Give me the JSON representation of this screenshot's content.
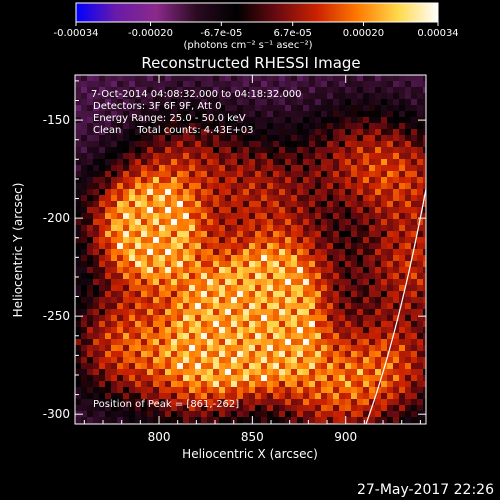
{
  "chart_data": {
    "type": "heatmap",
    "title": "Reconstructed RHESSI Image",
    "xlabel": "Heliocentric X (arcsec)",
    "ylabel": "Heliocentric Y (arcsec)",
    "xlim": [
      755,
      943
    ],
    "ylim": [
      -305,
      -127
    ],
    "x_ticks": [
      800,
      850,
      900
    ],
    "x_tick_labels": [
      "800",
      "850",
      "900"
    ],
    "y_ticks": [
      -150,
      -200,
      -250,
      -300
    ],
    "y_tick_labels": [
      "-150",
      "-200",
      "-250",
      "-300"
    ],
    "colorbar": {
      "range": [
        -0.00034,
        0.00034
      ],
      "ticks": [
        -0.00034,
        -0.0002,
        -6.7e-05,
        6.7e-05,
        0.0002,
        0.00034
      ],
      "tick_labels": [
        "-0.00034",
        "-0.00020",
        "-6.7e-05",
        "6.7e-05",
        "0.00020",
        "0.00034"
      ],
      "unit_label": "(photons cm⁻² s⁻¹ asec⁻²)",
      "colormap": [
        "#0000ff",
        "#6a1aa8",
        "#8a2a8a",
        "#2a0a20",
        "#000000",
        "#6a0a10",
        "#cc2200",
        "#ff7a00",
        "#ffd84a",
        "#ffffff"
      ]
    },
    "annotations": [
      "7-Oct-2014 04:08:32.000 to 04:18:32.000",
      "Detectors: 3F 6F 9F, Att 0",
      "Energy Range: 25.0 - 50.0 keV",
      "Clean     Total counts: 4.43E+03",
      "Position of Peak = [861,-262]"
    ],
    "bright_regions": [
      {
        "x": 790,
        "y": -200,
        "level": 0.95
      },
      {
        "x": 800,
        "y": -215,
        "level": 0.85
      },
      {
        "x": 780,
        "y": -265,
        "level": 0.8
      },
      {
        "x": 820,
        "y": -280,
        "level": 0.75
      },
      {
        "x": 861,
        "y": -262,
        "level": 1.0
      },
      {
        "x": 850,
        "y": -245,
        "level": 0.85
      },
      {
        "x": 870,
        "y": -225,
        "level": 0.7
      },
      {
        "x": 835,
        "y": -255,
        "level": 0.8
      },
      {
        "x": 893,
        "y": -290,
        "level": 0.7
      },
      {
        "x": 925,
        "y": -275,
        "level": 0.75
      },
      {
        "x": 935,
        "y": -225,
        "level": 0.7
      },
      {
        "x": 935,
        "y": -180,
        "level": 0.6
      },
      {
        "x": 905,
        "y": -170,
        "level": 0.55
      },
      {
        "x": 855,
        "y": -185,
        "level": 0.55
      },
      {
        "x": 815,
        "y": -170,
        "level": 0.5
      }
    ],
    "limb_arc": "white curve near right edge"
  },
  "footer": {
    "timestamp": "27-May-2017 22:26"
  }
}
